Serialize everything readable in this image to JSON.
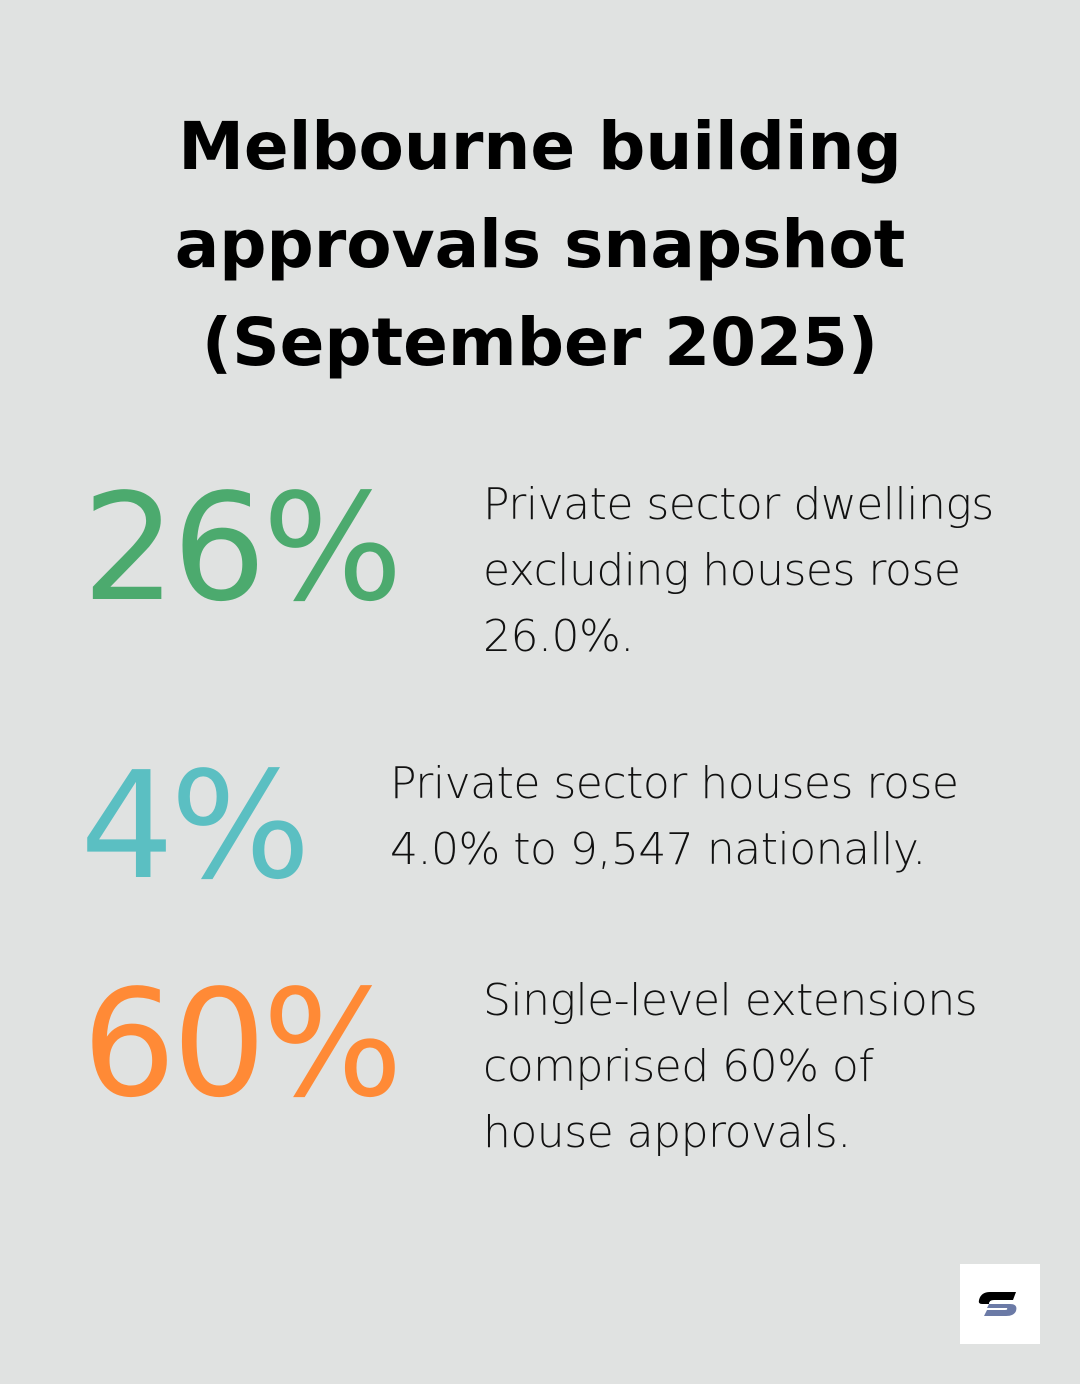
{
  "title": {
    "line1": "Melbourne building",
    "line2": "approvals snapshot",
    "line3": "(September 2025)"
  },
  "stats": [
    {
      "value": "26%",
      "color": "#4caa6e",
      "lines": [
        "Private sector dwellings",
        "excluding houses rose",
        "26.0%."
      ]
    },
    {
      "value": "4%",
      "color": "#5bbfc2",
      "lines": [
        "Private sector houses rose",
        "4.0% to 9,547 nationally."
      ]
    },
    {
      "value": "60%",
      "color": "#ff8a36",
      "lines": [
        "Single-level extensions",
        "comprised 60% of",
        "house approvals."
      ]
    }
  ],
  "logo": {
    "icon": "brand-s-logo",
    "colors": [
      "#000000",
      "#6b7aa6"
    ]
  }
}
